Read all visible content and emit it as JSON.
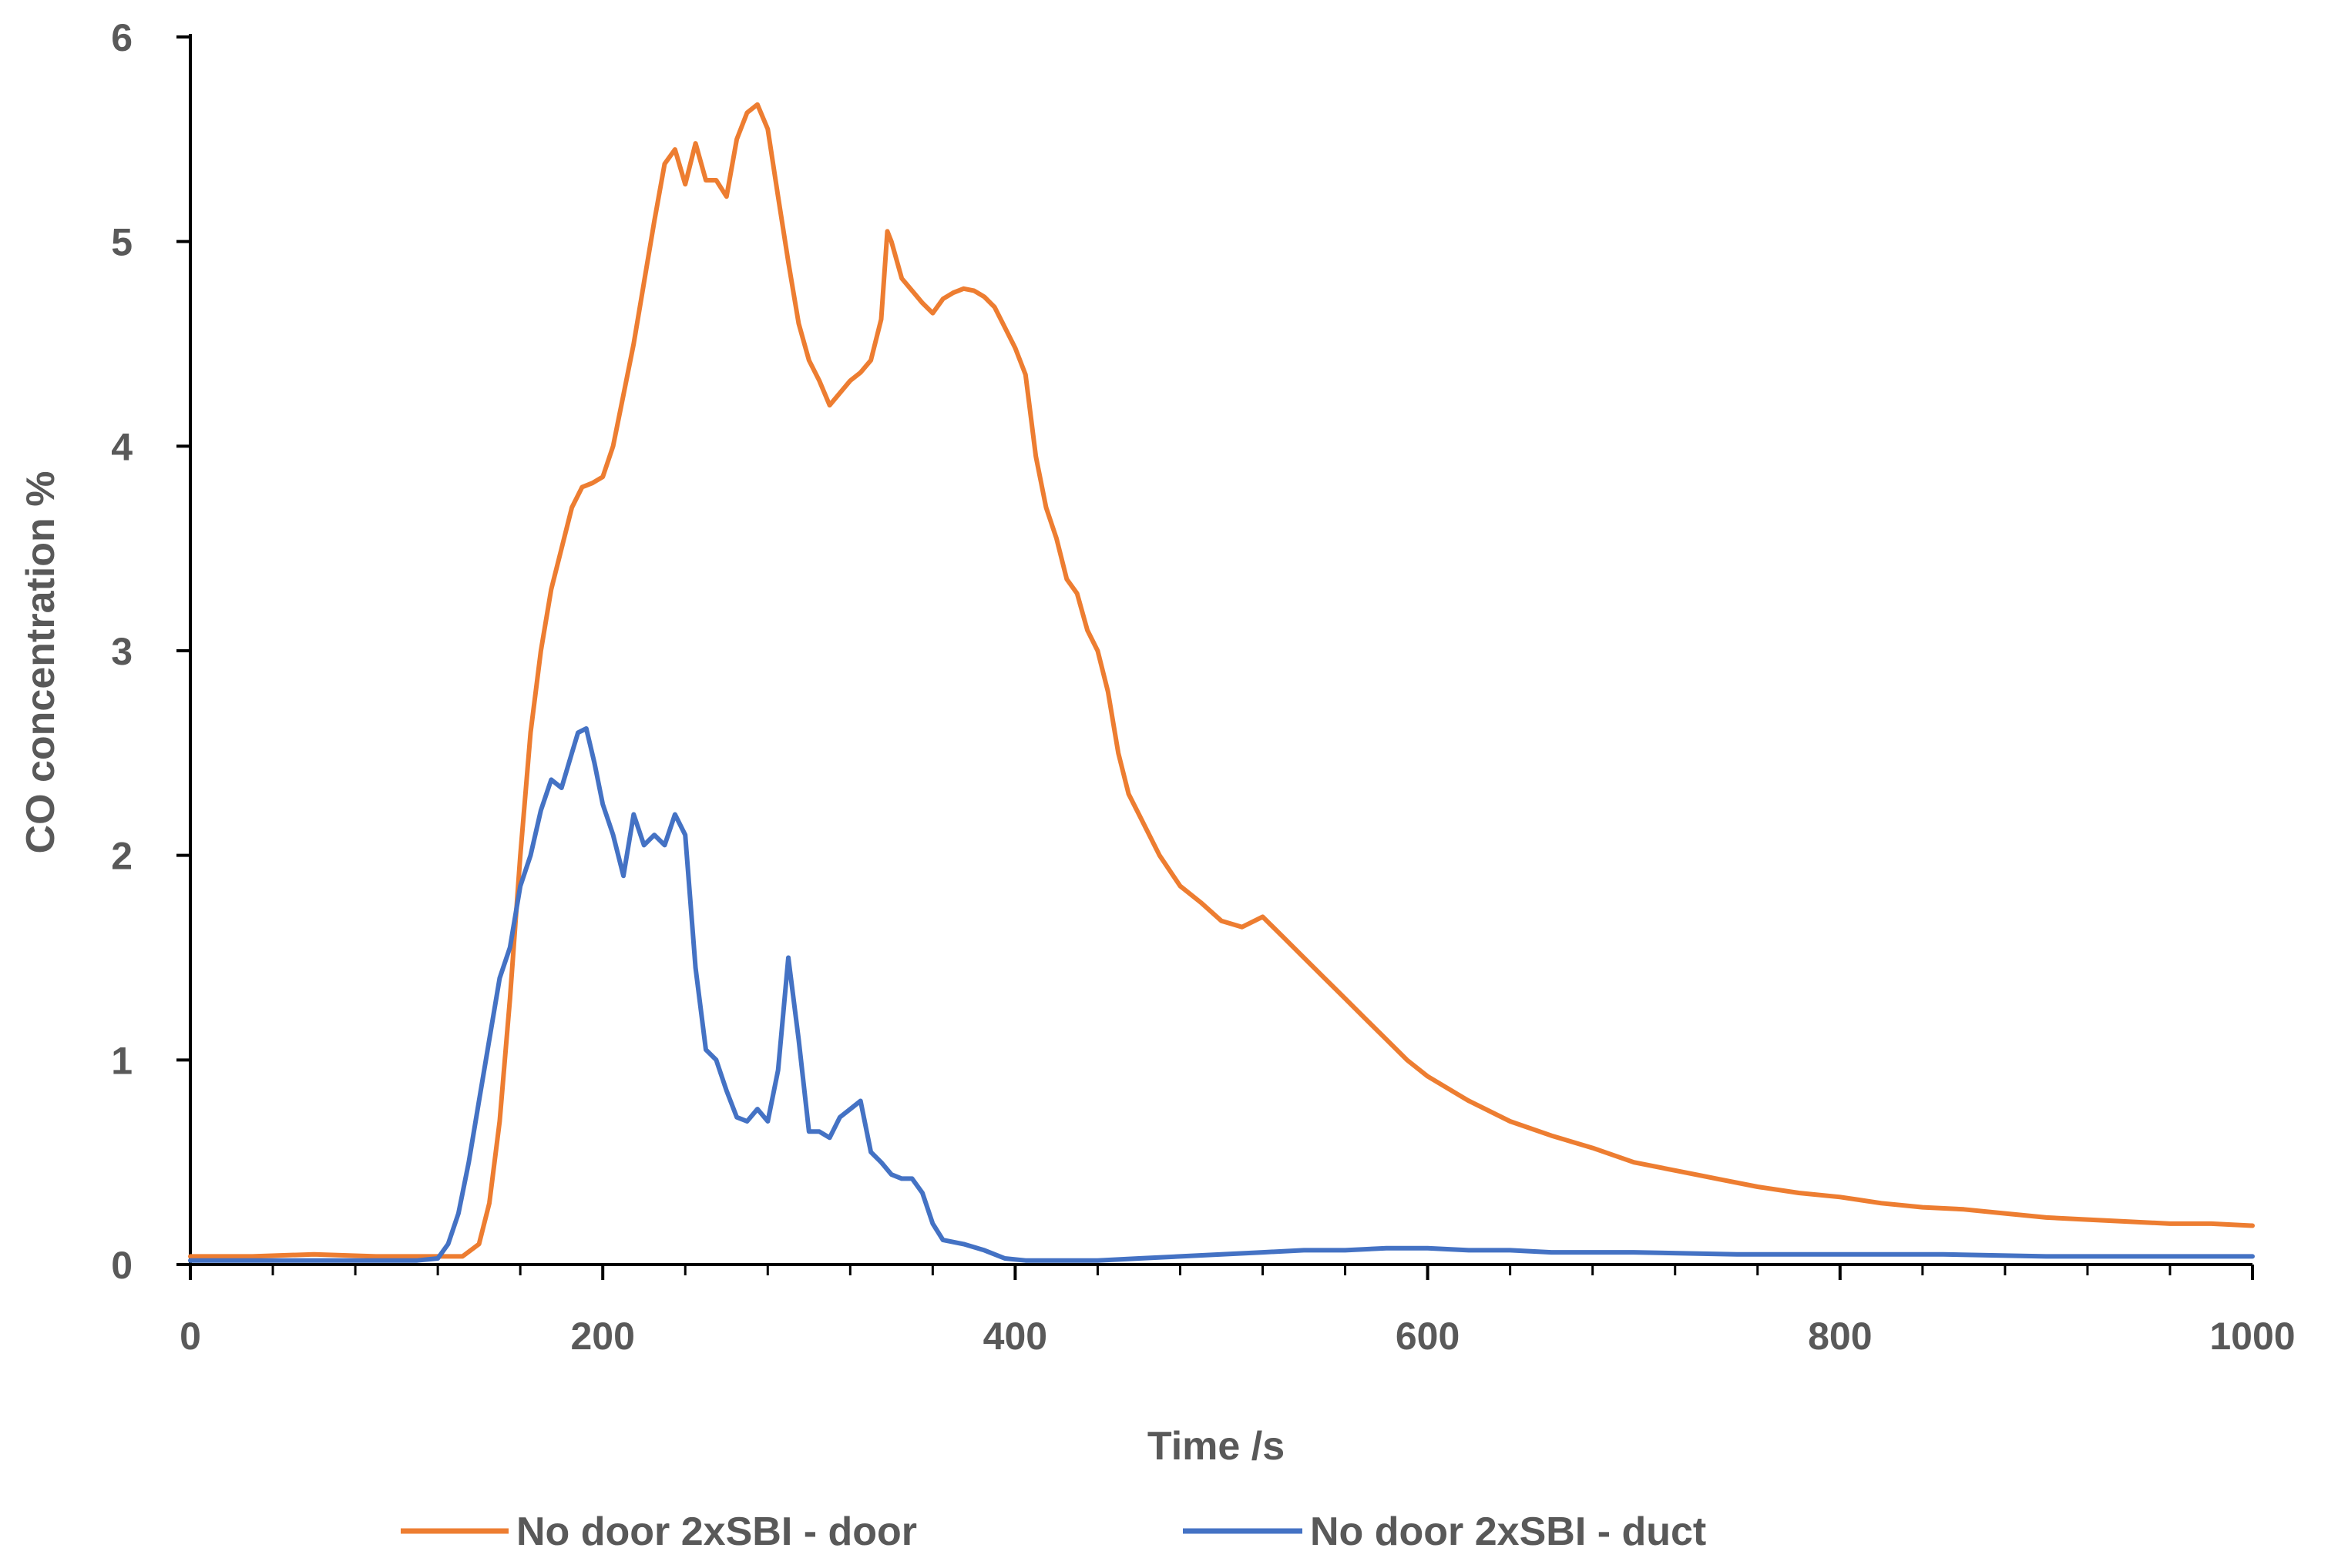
{
  "chart_data": {
    "type": "line",
    "title": "",
    "xlabel": "Time /s",
    "ylabel": "CO concentration %",
    "xlim": [
      0,
      1000
    ],
    "ylim": [
      0,
      6
    ],
    "x_ticks": [
      0,
      200,
      400,
      600,
      800,
      1000
    ],
    "x_tick_labels": [
      "0",
      "200",
      "400",
      "600",
      "800",
      "1000"
    ],
    "y_ticks": [
      0,
      1,
      2,
      3,
      4,
      5,
      6
    ],
    "y_tick_labels": [
      "0",
      "1",
      "2",
      "3",
      "4",
      "5",
      "6"
    ],
    "grid": false,
    "legend_position": "bottom",
    "series": [
      {
        "name": "No door 2xSBI - door",
        "color": "#ED7D31",
        "points": [
          [
            0,
            0.04
          ],
          [
            30,
            0.04
          ],
          [
            60,
            0.05
          ],
          [
            90,
            0.04
          ],
          [
            120,
            0.04
          ],
          [
            132,
            0.04
          ],
          [
            140,
            0.1
          ],
          [
            145,
            0.3
          ],
          [
            150,
            0.7
          ],
          [
            155,
            1.3
          ],
          [
            160,
            2.0
          ],
          [
            165,
            2.6
          ],
          [
            170,
            3.0
          ],
          [
            175,
            3.3
          ],
          [
            180,
            3.5
          ],
          [
            185,
            3.7
          ],
          [
            190,
            3.8
          ],
          [
            195,
            3.82
          ],
          [
            200,
            3.85
          ],
          [
            205,
            4.0
          ],
          [
            210,
            4.25
          ],
          [
            215,
            4.5
          ],
          [
            220,
            4.8
          ],
          [
            225,
            5.1
          ],
          [
            230,
            5.38
          ],
          [
            235,
            5.45
          ],
          [
            240,
            5.28
          ],
          [
            245,
            5.48
          ],
          [
            250,
            5.3
          ],
          [
            255,
            5.3
          ],
          [
            260,
            5.22
          ],
          [
            265,
            5.5
          ],
          [
            270,
            5.63
          ],
          [
            275,
            5.67
          ],
          [
            280,
            5.55
          ],
          [
            285,
            5.22
          ],
          [
            290,
            4.9
          ],
          [
            295,
            4.6
          ],
          [
            300,
            4.42
          ],
          [
            305,
            4.32
          ],
          [
            310,
            4.2
          ],
          [
            315,
            4.26
          ],
          [
            320,
            4.32
          ],
          [
            325,
            4.36
          ],
          [
            330,
            4.42
          ],
          [
            335,
            4.62
          ],
          [
            338,
            5.05
          ],
          [
            340,
            5.0
          ],
          [
            345,
            4.82
          ],
          [
            350,
            4.76
          ],
          [
            355,
            4.7
          ],
          [
            360,
            4.65
          ],
          [
            365,
            4.72
          ],
          [
            370,
            4.75
          ],
          [
            375,
            4.77
          ],
          [
            380,
            4.76
          ],
          [
            385,
            4.73
          ],
          [
            390,
            4.68
          ],
          [
            395,
            4.58
          ],
          [
            400,
            4.48
          ],
          [
            405,
            4.35
          ],
          [
            410,
            3.95
          ],
          [
            415,
            3.7
          ],
          [
            420,
            3.55
          ],
          [
            425,
            3.35
          ],
          [
            430,
            3.28
          ],
          [
            435,
            3.1
          ],
          [
            440,
            3.0
          ],
          [
            445,
            2.8
          ],
          [
            450,
            2.5
          ],
          [
            455,
            2.3
          ],
          [
            460,
            2.2
          ],
          [
            470,
            2.0
          ],
          [
            480,
            1.85
          ],
          [
            490,
            1.77
          ],
          [
            500,
            1.68
          ],
          [
            510,
            1.65
          ],
          [
            520,
            1.7
          ],
          [
            530,
            1.6
          ],
          [
            540,
            1.5
          ],
          [
            550,
            1.4
          ],
          [
            560,
            1.3
          ],
          [
            570,
            1.2
          ],
          [
            580,
            1.1
          ],
          [
            590,
            1.0
          ],
          [
            600,
            0.92
          ],
          [
            620,
            0.8
          ],
          [
            640,
            0.7
          ],
          [
            660,
            0.63
          ],
          [
            680,
            0.57
          ],
          [
            700,
            0.5
          ],
          [
            720,
            0.46
          ],
          [
            740,
            0.42
          ],
          [
            760,
            0.38
          ],
          [
            780,
            0.35
          ],
          [
            800,
            0.33
          ],
          [
            820,
            0.3
          ],
          [
            840,
            0.28
          ],
          [
            860,
            0.27
          ],
          [
            880,
            0.25
          ],
          [
            900,
            0.23
          ],
          [
            920,
            0.22
          ],
          [
            940,
            0.21
          ],
          [
            960,
            0.2
          ],
          [
            980,
            0.2
          ],
          [
            1000,
            0.19
          ]
        ]
      },
      {
        "name": "No door 2xSBI - duct",
        "color": "#4472C4",
        "points": [
          [
            0,
            0.02
          ],
          [
            40,
            0.02
          ],
          [
            80,
            0.02
          ],
          [
            110,
            0.02
          ],
          [
            120,
            0.03
          ],
          [
            125,
            0.1
          ],
          [
            130,
            0.25
          ],
          [
            135,
            0.5
          ],
          [
            140,
            0.8
          ],
          [
            145,
            1.1
          ],
          [
            150,
            1.4
          ],
          [
            155,
            1.55
          ],
          [
            160,
            1.85
          ],
          [
            165,
            2.0
          ],
          [
            170,
            2.22
          ],
          [
            175,
            2.37
          ],
          [
            180,
            2.33
          ],
          [
            185,
            2.5
          ],
          [
            188,
            2.6
          ],
          [
            192,
            2.62
          ],
          [
            196,
            2.45
          ],
          [
            200,
            2.25
          ],
          [
            205,
            2.1
          ],
          [
            210,
            1.9
          ],
          [
            215,
            2.2
          ],
          [
            220,
            2.05
          ],
          [
            225,
            2.1
          ],
          [
            230,
            2.05
          ],
          [
            235,
            2.2
          ],
          [
            240,
            2.1
          ],
          [
            245,
            1.45
          ],
          [
            250,
            1.05
          ],
          [
            255,
            1.0
          ],
          [
            260,
            0.85
          ],
          [
            265,
            0.72
          ],
          [
            270,
            0.7
          ],
          [
            275,
            0.76
          ],
          [
            280,
            0.7
          ],
          [
            285,
            0.95
          ],
          [
            290,
            1.5
          ],
          [
            295,
            1.1
          ],
          [
            300,
            0.65
          ],
          [
            305,
            0.65
          ],
          [
            310,
            0.62
          ],
          [
            315,
            0.72
          ],
          [
            320,
            0.76
          ],
          [
            325,
            0.8
          ],
          [
            330,
            0.55
          ],
          [
            335,
            0.5
          ],
          [
            340,
            0.44
          ],
          [
            345,
            0.42
          ],
          [
            350,
            0.42
          ],
          [
            355,
            0.35
          ],
          [
            360,
            0.2
          ],
          [
            365,
            0.12
          ],
          [
            375,
            0.1
          ],
          [
            385,
            0.07
          ],
          [
            395,
            0.03
          ],
          [
            405,
            0.02
          ],
          [
            420,
            0.02
          ],
          [
            440,
            0.02
          ],
          [
            460,
            0.03
          ],
          [
            480,
            0.04
          ],
          [
            500,
            0.05
          ],
          [
            520,
            0.06
          ],
          [
            540,
            0.07
          ],
          [
            560,
            0.07
          ],
          [
            580,
            0.08
          ],
          [
            600,
            0.08
          ],
          [
            620,
            0.07
          ],
          [
            640,
            0.07
          ],
          [
            660,
            0.06
          ],
          [
            700,
            0.06
          ],
          [
            750,
            0.05
          ],
          [
            800,
            0.05
          ],
          [
            850,
            0.05
          ],
          [
            900,
            0.04
          ],
          [
            950,
            0.04
          ],
          [
            1000,
            0.04
          ]
        ]
      }
    ]
  }
}
